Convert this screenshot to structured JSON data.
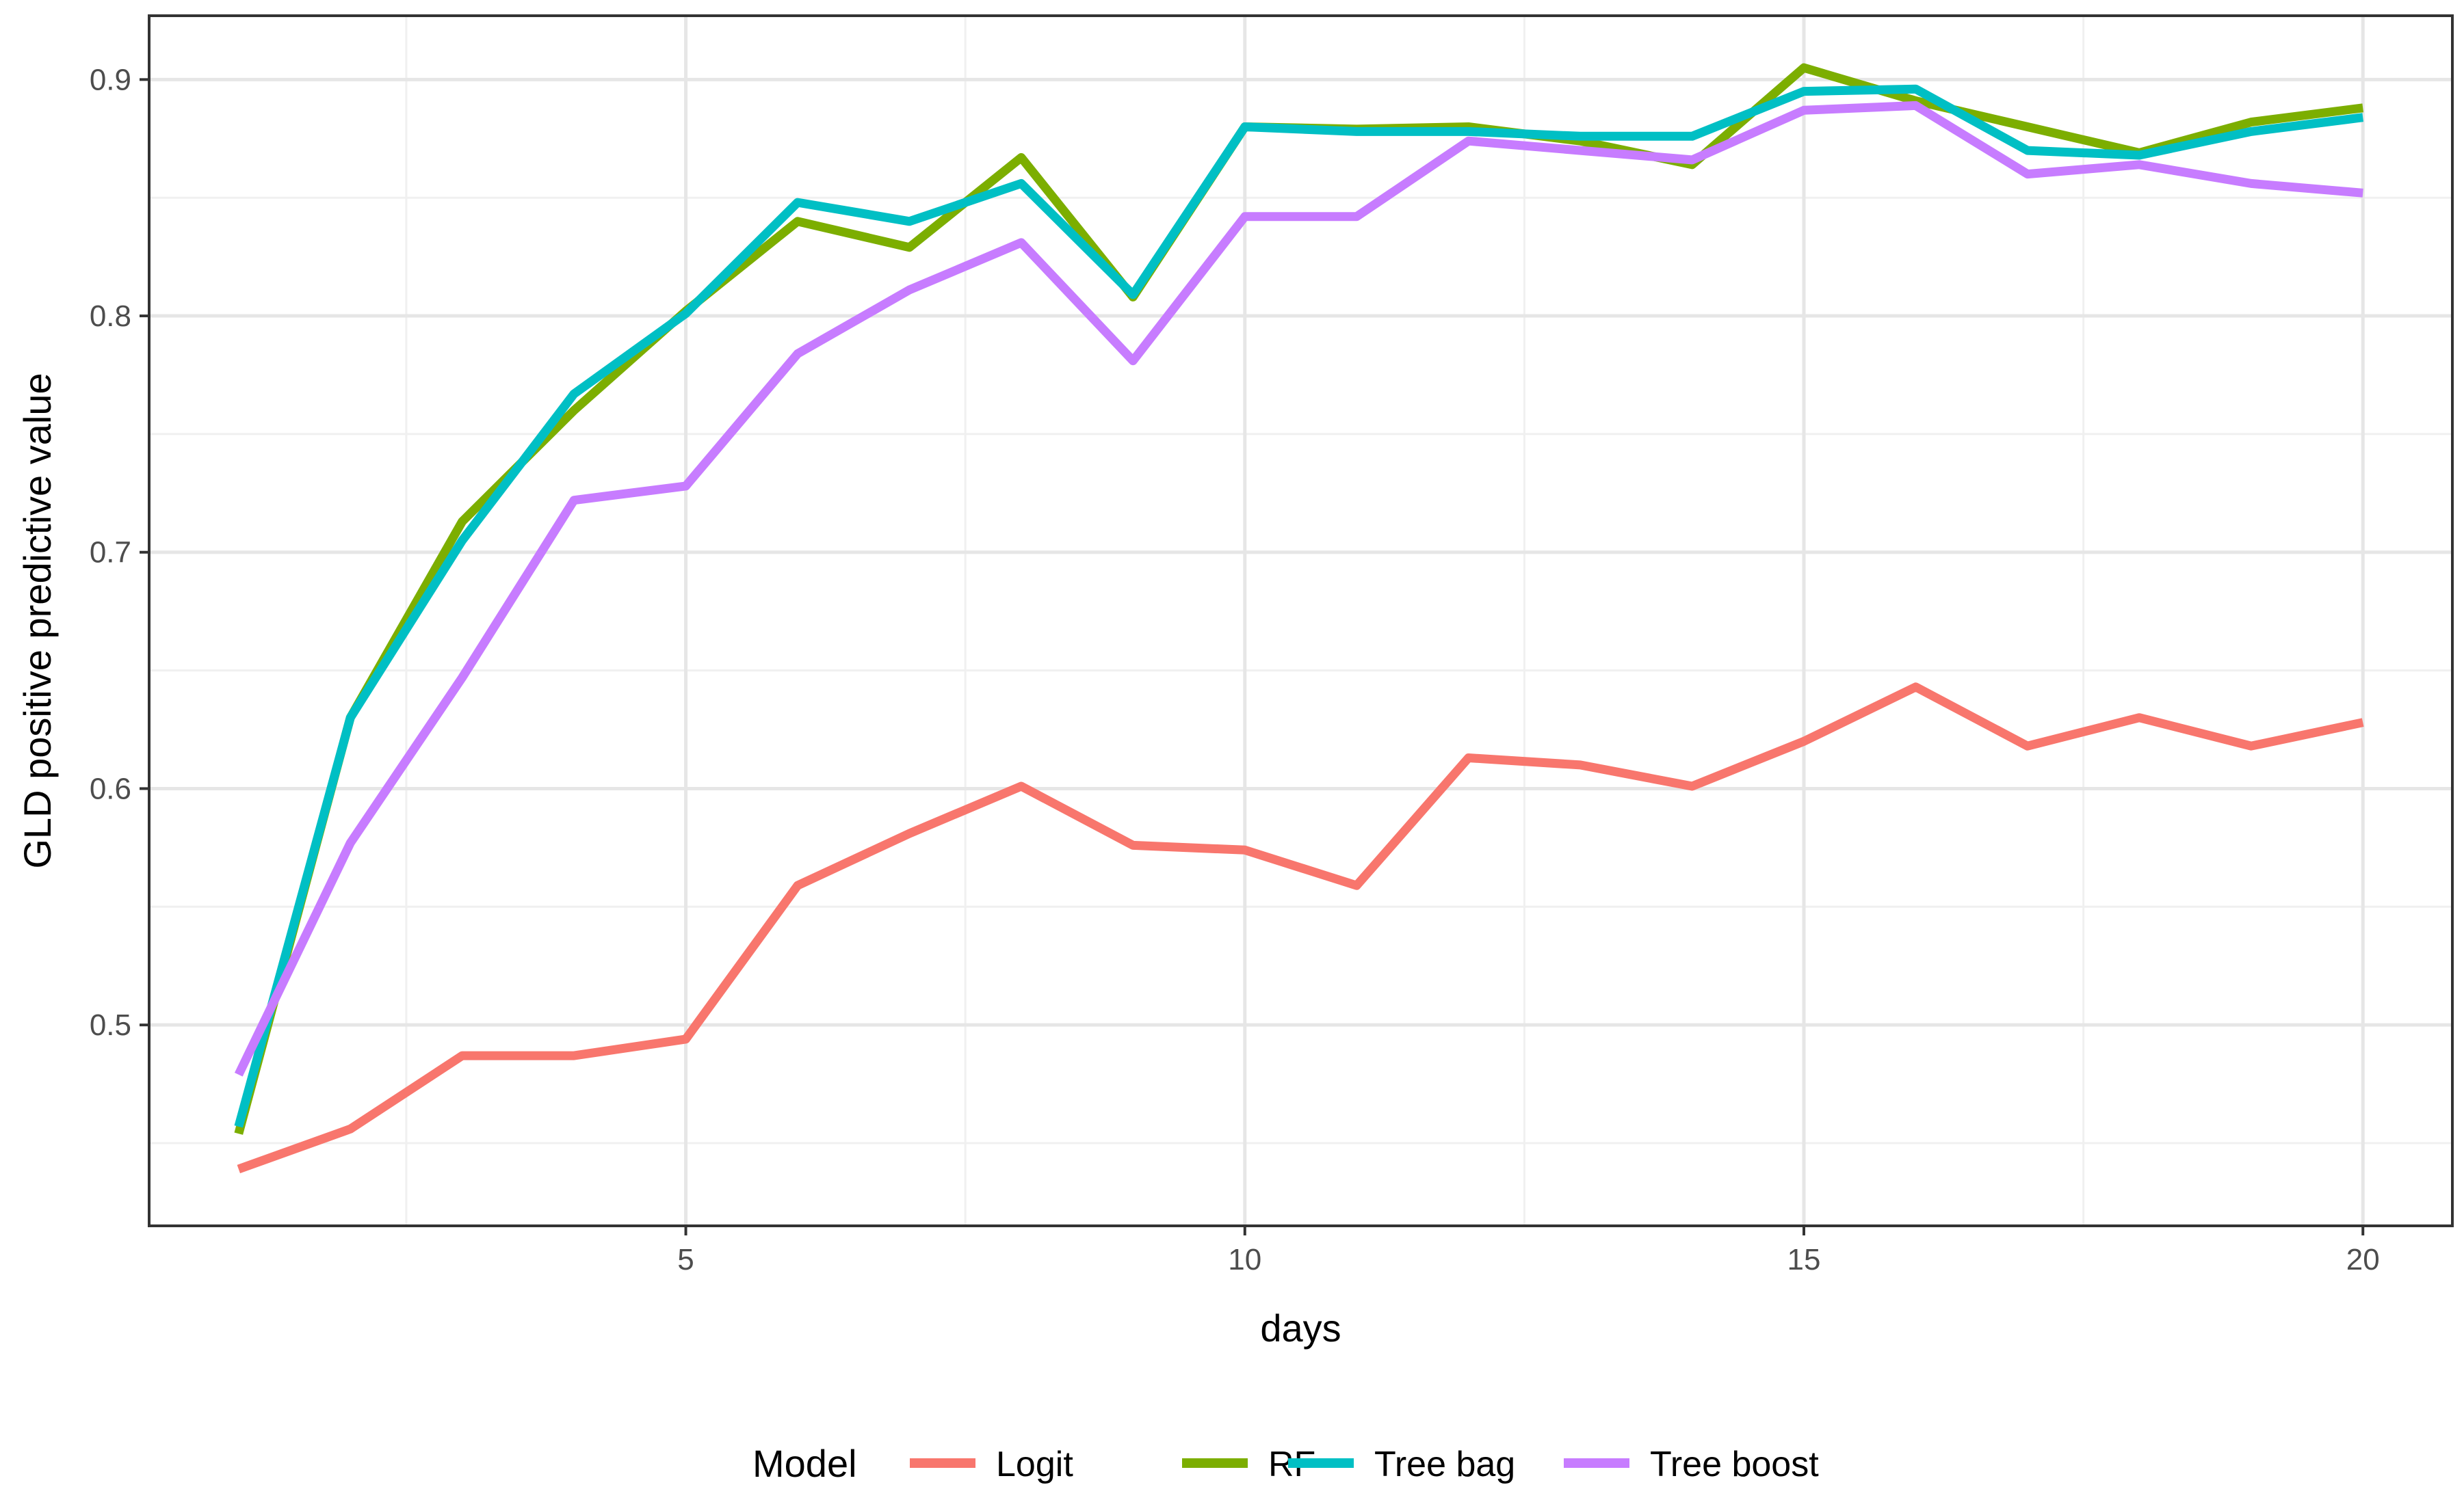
{
  "chart_data": {
    "type": "line",
    "title": "",
    "xlabel": "days",
    "ylabel": "GLD positive predictive value",
    "xlim": [
      0.2,
      20.8
    ],
    "ylim": [
      0.415,
      0.927
    ],
    "x_ticks": [
      5,
      10,
      15,
      20
    ],
    "x_minor_ticks": [
      2.5,
      7.5,
      12.5,
      17.5
    ],
    "y_ticks": [
      0.5,
      0.6,
      0.7,
      0.8,
      0.9
    ],
    "y_minor_ticks": [
      0.45,
      0.55,
      0.65,
      0.75,
      0.85
    ],
    "x_tick_labels": [
      "5",
      "10",
      "15",
      "20"
    ],
    "y_tick_labels": [
      "0.5",
      "0.6",
      "0.7",
      "0.8",
      "0.9"
    ],
    "grid": true,
    "legend": {
      "title": "Model",
      "placement": "bottom"
    },
    "x": [
      1,
      2,
      3,
      4,
      5,
      6,
      7,
      8,
      9,
      10,
      11,
      12,
      13,
      14,
      15,
      16,
      17,
      18,
      19,
      20
    ],
    "series": [
      {
        "name": "Logit",
        "color": "#F8766D",
        "values": [
          0.439,
          0.456,
          0.487,
          0.487,
          0.494,
          0.559,
          0.581,
          0.601,
          0.576,
          0.574,
          0.559,
          0.613,
          0.61,
          0.601,
          0.62,
          0.643,
          0.618,
          0.63,
          0.618,
          0.628
        ]
      },
      {
        "name": "RF",
        "color": "#7CAE00",
        "values": [
          0.454,
          0.63,
          0.713,
          0.76,
          0.802,
          0.84,
          0.829,
          0.867,
          0.808,
          0.88,
          0.879,
          0.88,
          0.874,
          0.864,
          0.905,
          0.891,
          0.88,
          0.869,
          0.882,
          0.888
        ]
      },
      {
        "name": "Tree bag",
        "color": "#00BFC4",
        "values": [
          0.457,
          0.63,
          0.705,
          0.767,
          0.801,
          0.848,
          0.84,
          0.856,
          0.809,
          0.88,
          0.878,
          0.878,
          0.876,
          0.876,
          0.895,
          0.896,
          0.87,
          0.868,
          0.878,
          0.884
        ]
      },
      {
        "name": "Tree boost",
        "color": "#C77CFF",
        "values": [
          0.479,
          0.577,
          0.647,
          0.722,
          0.728,
          0.784,
          0.811,
          0.831,
          0.781,
          0.842,
          0.842,
          0.874,
          0.87,
          0.866,
          0.887,
          0.889,
          0.86,
          0.864,
          0.856,
          0.852
        ]
      }
    ]
  }
}
